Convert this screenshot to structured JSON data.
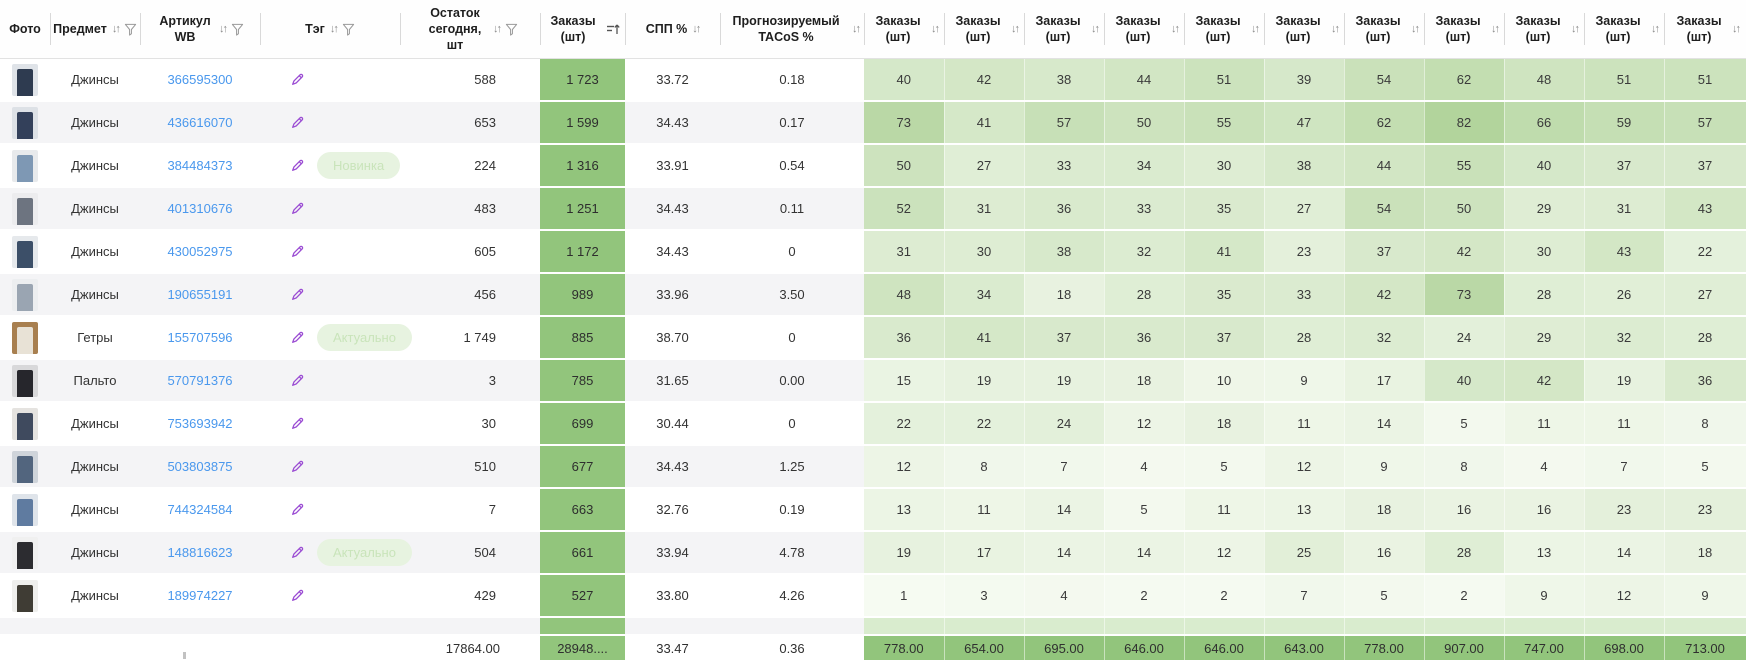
{
  "header": {
    "columns": [
      {
        "key": "photo",
        "label": "Фото",
        "icons": []
      },
      {
        "key": "item",
        "label": "Предмет",
        "icons": [
          "sort",
          "filter"
        ]
      },
      {
        "key": "article",
        "label": "Артикул WB",
        "icons": [
          "sort",
          "filter"
        ]
      },
      {
        "key": "tag",
        "label": "Тэг",
        "icons": [
          "sort",
          "filter"
        ]
      },
      {
        "key": "stock",
        "label": "Остаток сегодня, шт",
        "icons": [
          "sort",
          "filter"
        ]
      },
      {
        "key": "orders",
        "label": "Заказы (шт)",
        "icons": [
          "sort-active"
        ]
      },
      {
        "key": "spp",
        "label": "СПП %",
        "icons": [
          "sort"
        ]
      },
      {
        "key": "tacos",
        "label": "Прогнозируемый TACoS %",
        "icons": [
          "sort"
        ]
      },
      {
        "key": "day",
        "label": "Заказы (шт)",
        "icons": [
          "sort"
        ]
      },
      {
        "key": "day",
        "label": "Заказы (шт)",
        "icons": [
          "sort"
        ]
      },
      {
        "key": "day",
        "label": "Заказы (шт)",
        "icons": [
          "sort"
        ]
      },
      {
        "key": "day",
        "label": "Заказы (шт)",
        "icons": [
          "sort"
        ]
      },
      {
        "key": "day",
        "label": "Заказы (шт)",
        "icons": [
          "sort"
        ]
      },
      {
        "key": "day",
        "label": "Заказы (шт)",
        "icons": [
          "sort"
        ]
      },
      {
        "key": "day",
        "label": "Заказы (шт)",
        "icons": [
          "sort"
        ]
      },
      {
        "key": "day",
        "label": "Заказы (шт)",
        "icons": [
          "sort"
        ]
      },
      {
        "key": "day",
        "label": "Заказы (шт)",
        "icons": [
          "sort"
        ]
      },
      {
        "key": "day",
        "label": "Заказы (шт)",
        "icons": [
          "sort"
        ]
      },
      {
        "key": "day",
        "label": "Заказы (шт)",
        "icons": [
          "sort"
        ]
      }
    ]
  },
  "rows": [
    {
      "item": "Джинсы",
      "article": "366595300",
      "tag": "",
      "stock": "588",
      "orders": "1 723",
      "spp": "33.72",
      "tacos": "0.18",
      "days": [
        40,
        42,
        38,
        44,
        51,
        39,
        54,
        62,
        48,
        51,
        51
      ],
      "photo_bg": "#dfe3e8",
      "photo_main": "#2e3b50"
    },
    {
      "item": "Джинсы",
      "article": "436616070",
      "tag": "",
      "stock": "653",
      "orders": "1 599",
      "spp": "34.43",
      "tacos": "0.17",
      "days": [
        73,
        41,
        57,
        50,
        55,
        47,
        62,
        82,
        66,
        59,
        57
      ],
      "photo_bg": "#dde1e6",
      "photo_main": "#33405a"
    },
    {
      "item": "Джинсы",
      "article": "384484373",
      "tag": "Новинка",
      "stock": "224",
      "orders": "1 316",
      "spp": "33.91",
      "tacos": "0.54",
      "days": [
        50,
        27,
        33,
        34,
        30,
        38,
        44,
        55,
        40,
        37,
        37
      ],
      "photo_bg": "#e8eaec",
      "photo_main": "#7e98b4"
    },
    {
      "item": "Джинсы",
      "article": "401310676",
      "tag": "",
      "stock": "483",
      "orders": "1 251",
      "spp": "34.43",
      "tacos": "0.11",
      "days": [
        52,
        31,
        36,
        33,
        35,
        27,
        54,
        50,
        29,
        31,
        43
      ],
      "photo_bg": "#ececee",
      "photo_main": "#6d7480"
    },
    {
      "item": "Джинсы",
      "article": "430052975",
      "tag": "",
      "stock": "605",
      "orders": "1 172",
      "spp": "34.43",
      "tacos": "0",
      "days": [
        31,
        30,
        38,
        32,
        41,
        23,
        37,
        42,
        30,
        43,
        22
      ],
      "photo_bg": "#e6e9ec",
      "photo_main": "#3c4f68"
    },
    {
      "item": "Джинсы",
      "article": "190655191",
      "tag": "",
      "stock": "456",
      "orders": "989",
      "spp": "33.96",
      "tacos": "3.50",
      "days": [
        48,
        34,
        18,
        28,
        35,
        33,
        42,
        73,
        28,
        26,
        27
      ],
      "photo_bg": "#eceef0",
      "photo_main": "#9aa5b2"
    },
    {
      "item": "Гетры",
      "article": "155707596",
      "tag": "Актуально",
      "stock": "1 749",
      "orders": "885",
      "spp": "38.70",
      "tacos": "0",
      "days": [
        36,
        41,
        37,
        36,
        37,
        28,
        32,
        24,
        29,
        32,
        28
      ],
      "photo_bg": "#a87f4f",
      "photo_main": "#e8e2d6"
    },
    {
      "item": "Пальто",
      "article": "570791376",
      "tag": "",
      "stock": "3",
      "orders": "785",
      "spp": "31.65",
      "tacos": "0.00",
      "days": [
        15,
        19,
        19,
        18,
        10,
        9,
        17,
        40,
        42,
        19,
        36
      ],
      "photo_bg": "#d8d8da",
      "photo_main": "#26262c"
    },
    {
      "item": "Джинсы",
      "article": "753693942",
      "tag": "",
      "stock": "30",
      "orders": "699",
      "spp": "30.44",
      "tacos": "0",
      "days": [
        22,
        22,
        24,
        12,
        18,
        11,
        14,
        5,
        11,
        11,
        8
      ],
      "photo_bg": "#e5e3e0",
      "photo_main": "#3f4a5e"
    },
    {
      "item": "Джинсы",
      "article": "503803875",
      "tag": "",
      "stock": "510",
      "orders": "677",
      "spp": "34.43",
      "tacos": "1.25",
      "days": [
        12,
        8,
        7,
        4,
        5,
        12,
        9,
        8,
        4,
        7,
        5
      ],
      "photo_bg": "#cfd4da",
      "photo_main": "#52657e"
    },
    {
      "item": "Джинсы",
      "article": "744324584",
      "tag": "",
      "stock": "7",
      "orders": "663",
      "spp": "32.76",
      "tacos": "0.19",
      "days": [
        13,
        11,
        14,
        5,
        11,
        13,
        18,
        16,
        16,
        23,
        23
      ],
      "photo_bg": "#dfe4ea",
      "photo_main": "#5f7ba0"
    },
    {
      "item": "Джинсы",
      "article": "148816623",
      "tag": "Актуально",
      "stock": "504",
      "orders": "661",
      "spp": "33.94",
      "tacos": "4.78",
      "days": [
        19,
        17,
        14,
        14,
        12,
        25,
        16,
        28,
        13,
        14,
        18
      ],
      "photo_bg": "#f0f0f0",
      "photo_main": "#2c2c30"
    },
    {
      "item": "Джинсы",
      "article": "189974227",
      "tag": "",
      "stock": "429",
      "orders": "527",
      "spp": "33.80",
      "tacos": "4.26",
      "days": [
        1,
        3,
        4,
        2,
        2,
        7,
        5,
        2,
        9,
        12,
        9
      ],
      "photo_bg": "#efefed",
      "photo_main": "#3f3c34"
    }
  ],
  "totals": {
    "stock": "17864.00",
    "orders": "28948....",
    "spp": "33.47",
    "tacos": "0.36",
    "days": [
      "778.00",
      "654.00",
      "695.00",
      "646.00",
      "646.00",
      "643.00",
      "778.00",
      "907.00",
      "747.00",
      "698.00",
      "713.00"
    ]
  },
  "icons": {
    "sort": "↓↑",
    "filter": "funnel-icon",
    "sort_active": "sort-amount-up-icon",
    "edit": "pencil-icon"
  },
  "colors": {
    "orders_column": "#92c57c",
    "heatmap_min": "#f7fbf3",
    "heatmap_max": "#b2d49c",
    "row_stripe": "#f4f4f6",
    "link": "#4a98ed",
    "badge_bg": "#e7f3e0",
    "badge_text": "#c9e4ba",
    "edit_icon": "#9a4bd3"
  },
  "heatmap_max_value": 82
}
